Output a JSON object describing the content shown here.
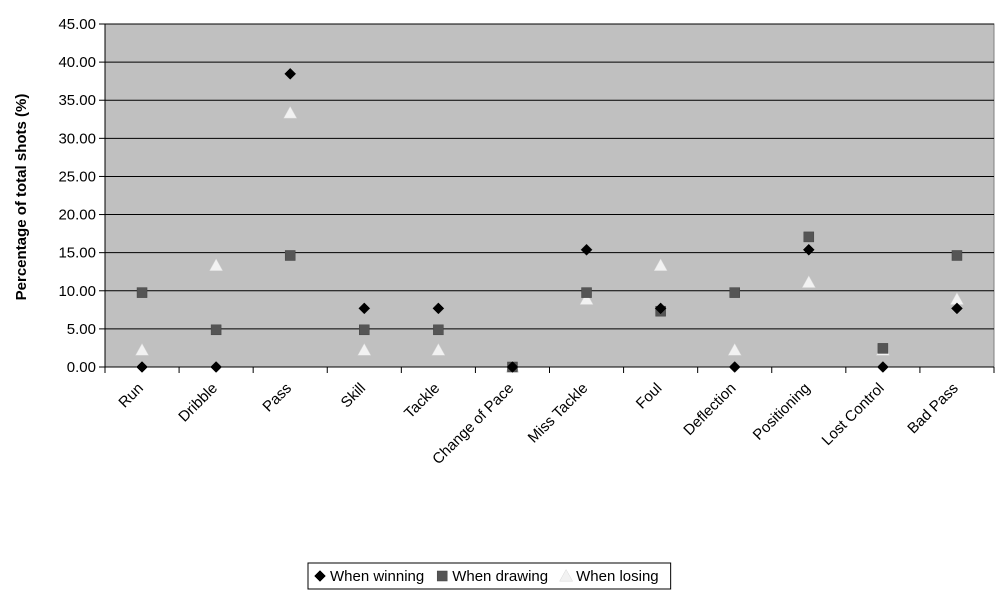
{
  "chart_data": {
    "type": "scatter",
    "title": "",
    "xlabel": "",
    "ylabel": "Percentage of total shots (%)",
    "ylim": [
      0,
      45
    ],
    "y_ticks": [
      "0.00",
      "5.00",
      "10.00",
      "15.00",
      "20.00",
      "25.00",
      "30.00",
      "35.00",
      "40.00",
      "45.00"
    ],
    "categories": [
      "Run",
      "Dribble",
      "Pass",
      "Skill",
      "Tackle",
      "Change of Pace",
      "Miss Tackle",
      "Foul",
      "Deflection",
      "Positioning",
      "Lost Control",
      "Bad Pass"
    ],
    "grid": true,
    "plot_background": "#C0C0C0",
    "legend_position": "bottom",
    "series": [
      {
        "name": "When winning",
        "marker": "diamond",
        "color": "#000000",
        "values": [
          0.0,
          0.0,
          38.46,
          7.69,
          7.69,
          0.0,
          15.38,
          7.69,
          0.0,
          15.38,
          0.0,
          7.69
        ]
      },
      {
        "name": "When drawing",
        "marker": "square",
        "color": "#555555",
        "values": [
          9.76,
          4.88,
          14.63,
          4.88,
          4.88,
          0.0,
          9.76,
          7.32,
          9.76,
          17.07,
          2.44,
          14.63
        ]
      },
      {
        "name": "When losing",
        "marker": "triangle",
        "color": "#F2F2F2",
        "values": [
          2.22,
          13.33,
          33.33,
          2.22,
          2.22,
          0.0,
          8.89,
          13.33,
          2.22,
          11.11,
          2.22,
          8.89
        ]
      }
    ]
  }
}
